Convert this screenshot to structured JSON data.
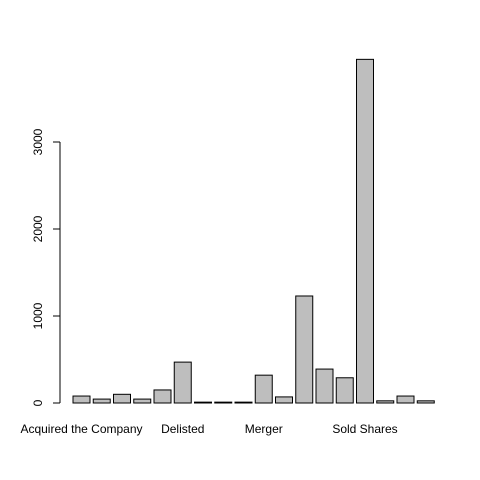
{
  "chart_data": {
    "type": "bar",
    "categories": [
      "Acquired the Company",
      null,
      null,
      null,
      null,
      "Delisted",
      null,
      null,
      null,
      "Merger",
      null,
      null,
      null,
      null,
      "Sold Shares",
      null,
      null,
      null
    ],
    "values": [
      80,
      45,
      100,
      45,
      150,
      470,
      10,
      10,
      10,
      320,
      70,
      1230,
      390,
      290,
      3950,
      25,
      80,
      25
    ],
    "color": "#bebebe",
    "ylim": [
      0,
      4000
    ],
    "yticks": [
      0,
      1000,
      2000,
      3000
    ],
    "grid": false
  }
}
